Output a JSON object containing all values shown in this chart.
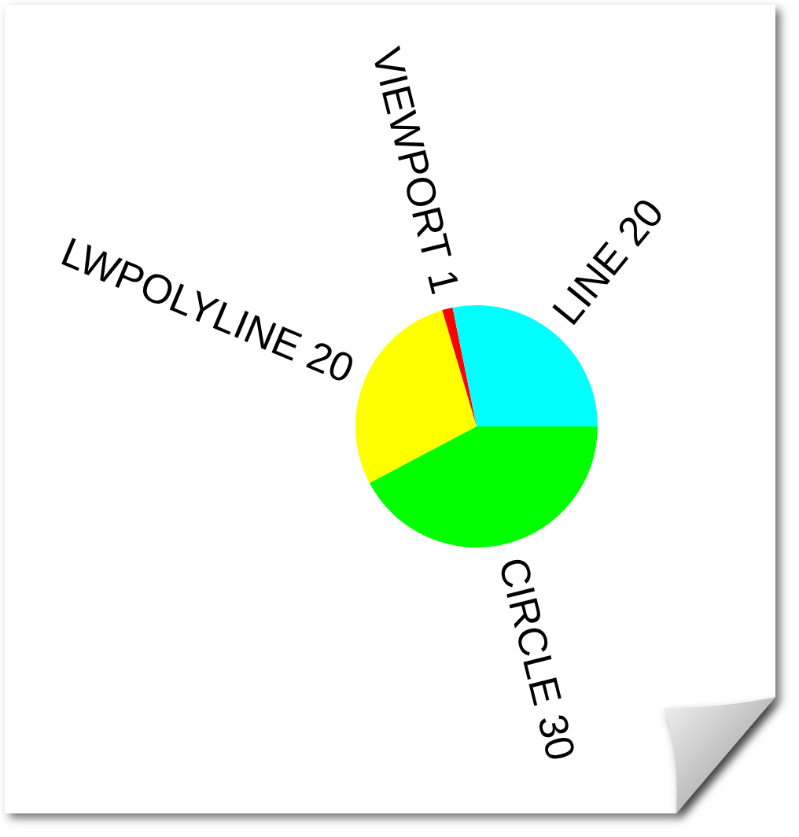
{
  "chart_data": {
    "type": "pie",
    "categories": [
      "CIRCLE",
      "LWPOLYLINE",
      "VIEWPORT",
      "LINE"
    ],
    "values": [
      30,
      20,
      1,
      20
    ],
    "colors": [
      "#00ff00",
      "#ffff00",
      "#ff0000",
      "#00ffff"
    ],
    "data_labels": true,
    "legend": false
  }
}
